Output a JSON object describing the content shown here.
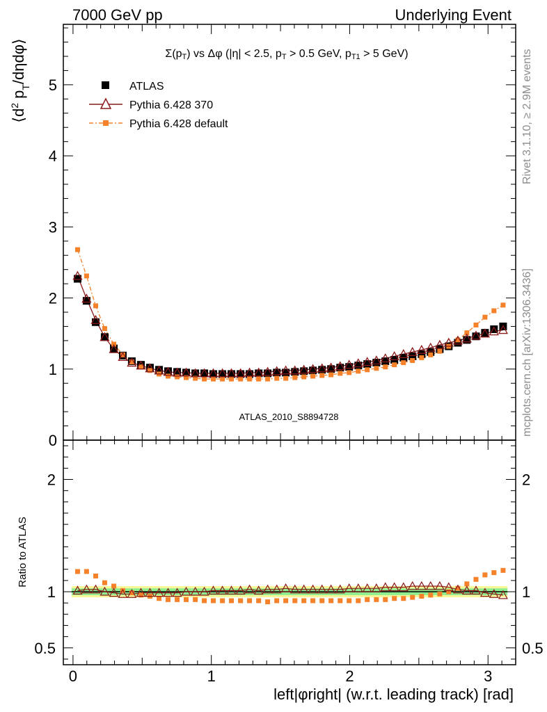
{
  "header": {
    "left": "7000 GeV pp",
    "right": "Underlying Event"
  },
  "side_labels": {
    "rivet": "Rivet 3.1.10, ≥ 2.9M events",
    "mcplots": "mcplots.cern.ch [arXiv:1306.3436]"
  },
  "analysis_id": "ATLAS_2010_S8894728",
  "chart_data": [
    {
      "type": "scatter",
      "panel": "main",
      "title": "Σ(pT) vs Δφ (|η| < 2.5, pT > 0.5 GeV, pT1 > 5 GeV)",
      "xlabel": "left|φright| (w.r.t. leading track) [rad]",
      "ylabel": "⟨d² pT/dηdφ⟩",
      "xlim": [
        -0.07,
        3.2
      ],
      "ylim": [
        0,
        5.85
      ],
      "xticks": [
        "0",
        "1",
        "2",
        "3"
      ],
      "yticks": [
        "0",
        "1",
        "2",
        "3",
        "4",
        "5"
      ],
      "legend_position": "top-left",
      "x": [
        0.033,
        0.098,
        0.164,
        0.229,
        0.295,
        0.36,
        0.425,
        0.491,
        0.556,
        0.622,
        0.687,
        0.753,
        0.818,
        0.884,
        0.949,
        1.014,
        1.08,
        1.145,
        1.211,
        1.276,
        1.342,
        1.407,
        1.473,
        1.538,
        1.604,
        1.669,
        1.734,
        1.8,
        1.865,
        1.931,
        1.996,
        2.062,
        2.127,
        2.193,
        2.258,
        2.323,
        2.389,
        2.454,
        2.52,
        2.585,
        2.651,
        2.716,
        2.782,
        2.847,
        2.913,
        2.978,
        3.043,
        3.109
      ],
      "series": [
        {
          "name": "ATLAS",
          "marker": "filled-square",
          "color": "#000000",
          "values": [
            2.27,
            1.96,
            1.66,
            1.45,
            1.29,
            1.19,
            1.11,
            1.06,
            1.02,
            0.99,
            0.97,
            0.96,
            0.95,
            0.94,
            0.94,
            0.93,
            0.93,
            0.93,
            0.93,
            0.93,
            0.94,
            0.94,
            0.95,
            0.95,
            0.96,
            0.97,
            0.98,
            0.99,
            1.0,
            1.02,
            1.03,
            1.05,
            1.07,
            1.09,
            1.11,
            1.13,
            1.16,
            1.18,
            1.21,
            1.24,
            1.28,
            1.32,
            1.37,
            1.41,
            1.46,
            1.51,
            1.56,
            1.6
          ]
        },
        {
          "name": "Pythia 6.428 370",
          "marker": "open-triangle",
          "color": "#8b1a1a",
          "values": [
            2.31,
            1.99,
            1.69,
            1.45,
            1.28,
            1.17,
            1.09,
            1.05,
            1.01,
            0.98,
            0.96,
            0.95,
            0.95,
            0.94,
            0.94,
            0.94,
            0.94,
            0.94,
            0.94,
            0.95,
            0.95,
            0.96,
            0.97,
            0.98,
            0.98,
            0.99,
            1.0,
            1.01,
            1.02,
            1.04,
            1.06,
            1.08,
            1.1,
            1.12,
            1.15,
            1.18,
            1.21,
            1.24,
            1.27,
            1.3,
            1.34,
            1.37,
            1.4,
            1.43,
            1.47,
            1.5,
            1.53,
            1.55
          ]
        },
        {
          "name": "Pythia 6.428 default",
          "marker": "filled-square-small",
          "color": "#f5822a",
          "values": [
            2.68,
            2.31,
            1.89,
            1.57,
            1.35,
            1.2,
            1.1,
            1.03,
            0.98,
            0.93,
            0.9,
            0.89,
            0.88,
            0.87,
            0.86,
            0.86,
            0.86,
            0.86,
            0.86,
            0.86,
            0.86,
            0.86,
            0.87,
            0.87,
            0.88,
            0.89,
            0.9,
            0.91,
            0.92,
            0.94,
            0.95,
            0.97,
            0.99,
            1.01,
            1.03,
            1.06,
            1.09,
            1.12,
            1.16,
            1.2,
            1.25,
            1.32,
            1.41,
            1.51,
            1.62,
            1.73,
            1.82,
            1.9
          ]
        }
      ]
    },
    {
      "type": "scatter",
      "panel": "ratio",
      "ylabel": "Ratio to ATLAS",
      "xlabel": "left|φright| (w.r.t. leading track) [rad]",
      "xlim": [
        -0.07,
        3.2
      ],
      "ylim": [
        0.35,
        2.35
      ],
      "yticks": [
        "0.5",
        "1",
        "2"
      ],
      "reference_line": 1.0,
      "uncertainty_bands": {
        "inner_color": "#8fee8f",
        "inner_half_width": 0.03,
        "outer_color": "#f7f79a",
        "outer_half_width": 0.05
      },
      "series": [
        {
          "name": "Pythia 6.428 370",
          "marker": "open-triangle",
          "color": "#8b1a1a",
          "values": [
            1.01,
            1.02,
            1.02,
            1.0,
            0.99,
            0.98,
            0.98,
            0.99,
            0.99,
            0.99,
            0.99,
            0.99,
            1.0,
            1.0,
            1.0,
            1.01,
            1.01,
            1.01,
            1.01,
            1.02,
            1.01,
            1.02,
            1.02,
            1.03,
            1.02,
            1.02,
            1.02,
            1.02,
            1.02,
            1.02,
            1.03,
            1.03,
            1.03,
            1.03,
            1.04,
            1.04,
            1.04,
            1.05,
            1.05,
            1.05,
            1.05,
            1.04,
            1.02,
            1.01,
            1.01,
            0.99,
            0.98,
            0.97
          ]
        },
        {
          "name": "Pythia 6.428 default",
          "marker": "filled-square-small",
          "color": "#f5822a",
          "values": [
            1.18,
            1.18,
            1.14,
            1.08,
            1.05,
            1.01,
            0.99,
            0.97,
            0.96,
            0.94,
            0.93,
            0.93,
            0.93,
            0.93,
            0.92,
            0.92,
            0.92,
            0.92,
            0.92,
            0.92,
            0.92,
            0.91,
            0.92,
            0.92,
            0.92,
            0.92,
            0.92,
            0.92,
            0.92,
            0.92,
            0.92,
            0.92,
            0.93,
            0.93,
            0.93,
            0.94,
            0.94,
            0.95,
            0.96,
            0.97,
            0.98,
            1.0,
            1.03,
            1.07,
            1.11,
            1.15,
            1.17,
            1.19
          ]
        }
      ]
    }
  ]
}
